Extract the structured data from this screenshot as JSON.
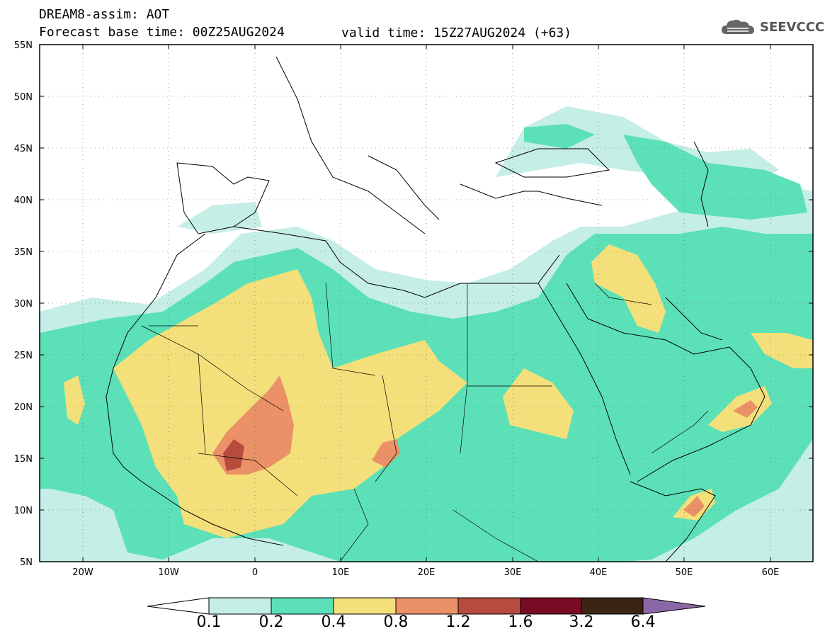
{
  "header": {
    "line1": "DREAM8-assim: AOT",
    "line2": "Forecast base time: 00Z25AUG2024",
    "valid": "valid time: 15Z27AUG2024 (+63)"
  },
  "logo": {
    "text": "SEEVCCC",
    "icon": "cloud-icon"
  },
  "axes": {
    "lat_labels": [
      "55N",
      "50N",
      "45N",
      "40N",
      "35N",
      "30N",
      "25N",
      "20N",
      "15N",
      "10N",
      "5N"
    ],
    "lon_labels": [
      "20W",
      "10W",
      "0",
      "10E",
      "20E",
      "30E",
      "40E",
      "50E",
      "60E"
    ]
  },
  "chart_data": {
    "type": "heatmap",
    "variable": "AOT",
    "lat_range": [
      5,
      55
    ],
    "lon_range": [
      -25,
      65
    ],
    "colorbar": {
      "levels": [
        "0.1",
        "0.2",
        "0.4",
        "0.8",
        "1.2",
        "1.6",
        "3.2",
        "6.4"
      ],
      "colors": [
        "#ffffff",
        "#c4eee6",
        "#5ce0b8",
        "#f4e07a",
        "#eb9167",
        "#b64b3e",
        "#7a0b25",
        "#3a2514",
        "#8a68a8"
      ]
    }
  },
  "colors": {
    "class1": "#c4eee6",
    "class2": "#5ce0b8",
    "class3": "#f4e07a",
    "class4": "#eb9167",
    "class5": "#b64b3e"
  }
}
